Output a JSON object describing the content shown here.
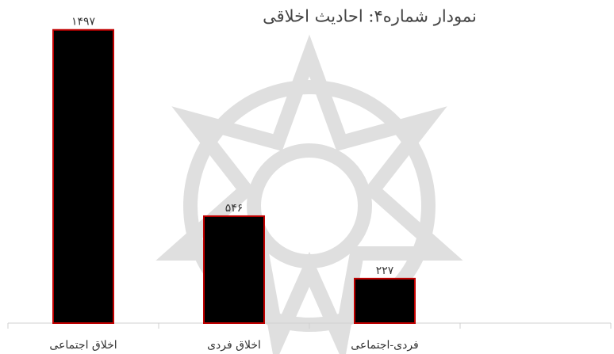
{
  "chart_data": {
    "type": "bar",
    "title": "نمودار شماره۴: احادیث اخلاقی",
    "categories": [
      "اخلاق اجتماعی",
      "اخلاق فردی",
      "فردی-اجتماعی",
      null
    ],
    "values": [
      1497,
      546,
      227,
      null
    ],
    "value_labels": [
      "۱۴۹۷",
      "۵۴۶",
      "۲۲۷",
      null
    ],
    "color": "#000000",
    "edgecolor": "#c00000",
    "ylim": [
      0,
      1500
    ]
  }
}
